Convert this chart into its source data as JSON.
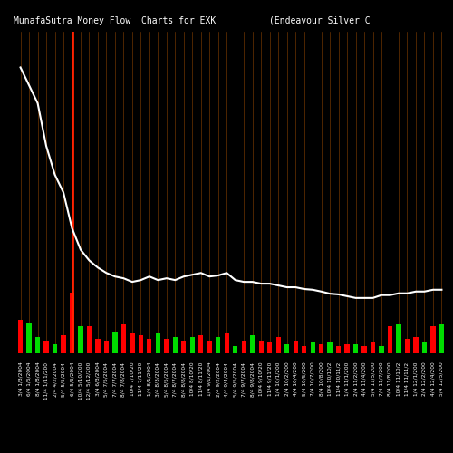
{
  "title": "MunafaSutra Money Flow  Charts for EXK          (Endeavour Silver C",
  "background_color": "#000000",
  "bar_colors": [
    "#ff0000",
    "#00dd00",
    "#00dd00",
    "#ff0000",
    "#00dd00",
    "#ff0000",
    "#ff0000",
    "#00dd00",
    "#ff0000",
    "#ff0000",
    "#ff0000",
    "#00dd00",
    "#ff0000",
    "#ff0000",
    "#ff0000",
    "#ff0000",
    "#00dd00",
    "#ff0000",
    "#00dd00",
    "#ff0000",
    "#00dd00",
    "#ff0000",
    "#ff0000",
    "#00dd00",
    "#ff0000",
    "#00dd00",
    "#ff0000",
    "#00dd00",
    "#ff0000",
    "#ff0000",
    "#ff0000",
    "#00dd00",
    "#ff0000",
    "#ff0000",
    "#00dd00",
    "#ff0000",
    "#00dd00",
    "#ff0000",
    "#ff0000",
    "#00dd00",
    "#ff0000",
    "#ff0000",
    "#00dd00",
    "#ff0000",
    "#00dd00",
    "#ff0000",
    "#ff0000",
    "#00dd00",
    "#ff0000",
    "#00dd00"
  ],
  "bar_heights": [
    95,
    85,
    45,
    35,
    25,
    50,
    170,
    75,
    75,
    40,
    35,
    60,
    80,
    55,
    50,
    40,
    55,
    40,
    45,
    35,
    45,
    50,
    35,
    45,
    55,
    20,
    35,
    50,
    35,
    30,
    45,
    25,
    35,
    20,
    30,
    25,
    30,
    20,
    25,
    25,
    20,
    30,
    20,
    75,
    80,
    40,
    45,
    30,
    75,
    80
  ],
  "line_values": [
    800,
    750,
    700,
    580,
    500,
    450,
    350,
    290,
    260,
    240,
    225,
    215,
    210,
    200,
    205,
    215,
    205,
    210,
    205,
    215,
    220,
    225,
    215,
    218,
    225,
    205,
    200,
    200,
    195,
    195,
    190,
    185,
    185,
    180,
    178,
    173,
    167,
    165,
    160,
    155,
    155,
    155,
    163,
    163,
    168,
    168,
    173,
    173,
    178,
    178
  ],
  "xlabels": [
    "3/4 1/3/2004",
    "6/4 1/6/2004",
    "8/4 1/8/2004",
    "11/4 1/11/200",
    "2/4 4/2/2004",
    "5/4 5/5/2004",
    "6/4 5/6/2004",
    "10/4 5/10/200",
    "12/4 5/12/200",
    "3/4 6/3/2004",
    "5/4 7/5/2004",
    "7/4 7/7/2004",
    "8/4 7/8/2004",
    "10/4 7/10/20",
    "11/4 7/11/20",
    "1/4 8/1/2004",
    "3/4 8/3/2004",
    "5/4 8/5/2004",
    "7/4 8/7/2004",
    "8/4 8/8/2004",
    "10/4 8/10/20",
    "11/4 8/11/20",
    "1/4 9/1/2004",
    "2/4 9/2/2004",
    "4/4 9/4/2004",
    "5/4 9/5/2004",
    "7/4 9/7/2004",
    "8/4 9/8/2004",
    "10/4 9/10/20",
    "11/4 9/11/20",
    "1/4 10/1/200",
    "2/4 10/2/200",
    "4/4 10/4/200",
    "5/4 10/5/200",
    "7/4 10/7/200",
    "8/4 10/8/200",
    "10/4 10/10/2",
    "11/4 10/11/2",
    "1/4 11/1/200",
    "2/4 11/2/200",
    "4/4 11/4/200",
    "5/4 11/5/200",
    "7/4 11/7/200",
    "8/4 11/8/200",
    "10/4 11/10/2",
    "11/4 11/11/2",
    "1/4 12/1/200",
    "2/4 12/2/200",
    "4/4 12/4/200",
    "5/4 12/5/200"
  ],
  "vline_pos": 6,
  "vline_color": "#ff2200",
  "grid_line_color": "#7a3a00",
  "line_color": "#ffffff",
  "text_color": "#ffffff",
  "title_fontsize": 7,
  "tick_fontsize": 4.2,
  "ylim": [
    0,
    900
  ],
  "bar_width": 0.55
}
